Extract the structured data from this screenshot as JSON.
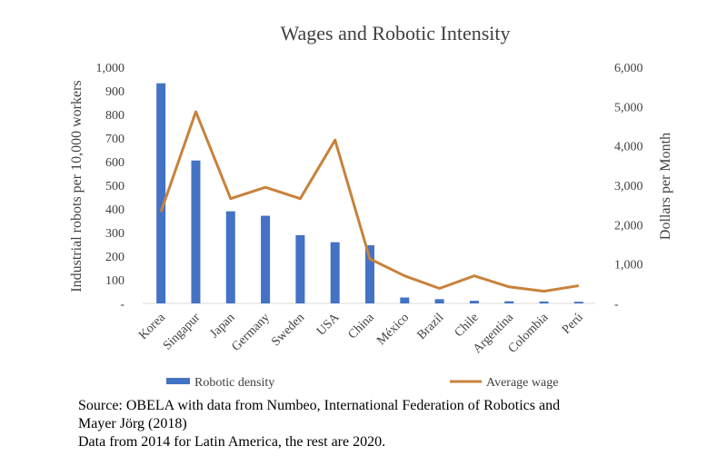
{
  "chart_data": {
    "type": "bar",
    "title": "Wages and Robotic Intensity",
    "categories": [
      "Korea",
      "Singapur",
      "Japan",
      "Germany",
      "Sweden",
      "USA",
      "China",
      "México",
      "Brazil",
      "Chile",
      "Argentina",
      "Colombia",
      "Perú"
    ],
    "series": [
      {
        "name": "Robotic density",
        "type": "bar",
        "axis": "left",
        "color": "#4472C4",
        "values": [
          932,
          605,
          390,
          371,
          289,
          259,
          246,
          25,
          18,
          11,
          9,
          8,
          7
        ]
      },
      {
        "name": "Average wage",
        "type": "line",
        "axis": "right",
        "color": "#C8823C",
        "values": [
          2330,
          4870,
          2660,
          2950,
          2660,
          4150,
          1130,
          700,
          380,
          700,
          420,
          310,
          450
        ]
      }
    ],
    "ylabel": "Industrial robots per 10,000 workers",
    "ylim": [
      0,
      1000
    ],
    "yticks": [
      "-",
      "100",
      "200",
      "300",
      "400",
      "500",
      "600",
      "700",
      "800",
      "900",
      "1,000"
    ],
    "y2label": "Dollars per Month",
    "y2lim": [
      0,
      6000
    ],
    "y2ticks": [
      "-",
      "1,000",
      "2,000",
      "3,000",
      "4,000",
      "5,000",
      "6,000"
    ],
    "grid": false,
    "legend_position": "bottom"
  },
  "source_lines": [
    "Source: OBELA with data from Numbeo, International Federation of Robotics and",
    "Mayer Jörg (2018)",
    "Data from 2014 for Latin America, the rest are 2020."
  ]
}
